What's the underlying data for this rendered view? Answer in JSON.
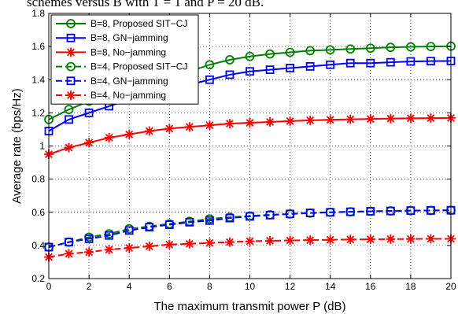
{
  "caption": "schemes versus B with T = 1 and P = 20 dB.",
  "chart_data": {
    "type": "line",
    "xlabel": "The maximum transmit power P (dB)",
    "ylabel": "Average rate (bps/Hz)",
    "xlim": [
      0,
      20
    ],
    "ylim": [
      0.2,
      1.8
    ],
    "xticks": [
      "0",
      "2",
      "4",
      "6",
      "8",
      "10",
      "12",
      "14",
      "16",
      "18",
      "20"
    ],
    "yticks": [
      "0.2",
      "0.4",
      "0.6",
      "0.8",
      "1",
      "1.2",
      "1.4",
      "1.6",
      "1.8"
    ],
    "grid": true,
    "legend_position": "top-left",
    "x": [
      0,
      1,
      2,
      3,
      4,
      5,
      6,
      7,
      8,
      9,
      10,
      11,
      12,
      13,
      14,
      15,
      16,
      17,
      18,
      19,
      20
    ],
    "series": [
      {
        "name": "B=8, Proposed SIT−CJ",
        "color": "#008000",
        "dash": "solid",
        "marker": "circle",
        "values": [
          1.16,
          1.22,
          1.27,
          1.31,
          1.35,
          1.38,
          1.41,
          1.45,
          1.49,
          1.52,
          1.54,
          1.555,
          1.565,
          1.575,
          1.58,
          1.585,
          1.59,
          1.595,
          1.598,
          1.6,
          1.602
        ]
      },
      {
        "name": "B=8, GN−jamming",
        "color": "#0000ff",
        "dash": "solid",
        "marker": "square",
        "values": [
          1.09,
          1.16,
          1.2,
          1.24,
          1.28,
          1.31,
          1.34,
          1.37,
          1.4,
          1.43,
          1.45,
          1.46,
          1.47,
          1.48,
          1.49,
          1.5,
          1.5,
          1.505,
          1.51,
          1.512,
          1.513
        ]
      },
      {
        "name": "B=8, No−jamming",
        "color": "#ff0000",
        "dash": "solid",
        "marker": "star",
        "values": [
          0.95,
          0.99,
          1.02,
          1.05,
          1.07,
          1.09,
          1.105,
          1.115,
          1.125,
          1.135,
          1.14,
          1.145,
          1.15,
          1.155,
          1.158,
          1.161,
          1.163,
          1.165,
          1.167,
          1.168,
          1.169
        ]
      },
      {
        "name": "B=4, Proposed SIT−CJ",
        "color": "#008000",
        "dash": "dashed",
        "marker": "circle",
        "values": [
          0.39,
          0.42,
          0.45,
          0.47,
          0.5,
          0.515,
          0.53,
          0.545,
          0.56,
          0.57,
          0.578,
          0.585,
          0.59,
          0.595,
          0.6,
          0.603,
          0.606,
          0.608,
          0.61,
          0.611,
          0.612
        ]
      },
      {
        "name": "B=4, GN−jamming",
        "color": "#0000ff",
        "dash": "dashed",
        "marker": "square",
        "values": [
          0.39,
          0.42,
          0.44,
          0.46,
          0.49,
          0.51,
          0.525,
          0.54,
          0.55,
          0.565,
          0.575,
          0.583,
          0.59,
          0.596,
          0.6,
          0.603,
          0.606,
          0.608,
          0.61,
          0.611,
          0.612
        ]
      },
      {
        "name": "B=4, No−jamming",
        "color": "#ff0000",
        "dash": "dashed",
        "marker": "star",
        "values": [
          0.33,
          0.35,
          0.36,
          0.375,
          0.385,
          0.395,
          0.405,
          0.41,
          0.415,
          0.42,
          0.425,
          0.428,
          0.43,
          0.432,
          0.434,
          0.436,
          0.437,
          0.438,
          0.439,
          0.44,
          0.44
        ]
      }
    ]
  }
}
